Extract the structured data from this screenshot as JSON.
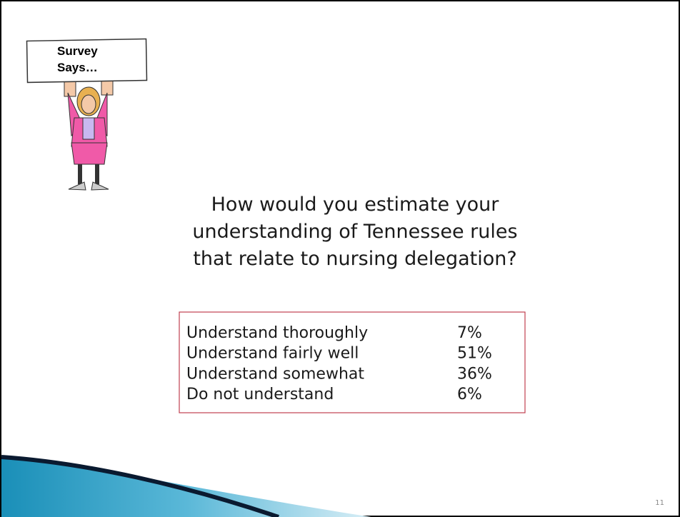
{
  "sign": {
    "lines": [
      "Survey",
      "Says…"
    ]
  },
  "question": {
    "lines": [
      "How would you estimate your",
      "understanding of Tennessee rules",
      "that relate to nursing delegation?"
    ]
  },
  "table": {
    "rows": [
      [
        "Understand thoroughly",
        "7%"
      ],
      [
        "Understand fairly well",
        "51%"
      ],
      [
        "Understand somewhat",
        "36%"
      ],
      [
        "Do not understand",
        "6%"
      ]
    ]
  },
  "slide_number": "11"
}
